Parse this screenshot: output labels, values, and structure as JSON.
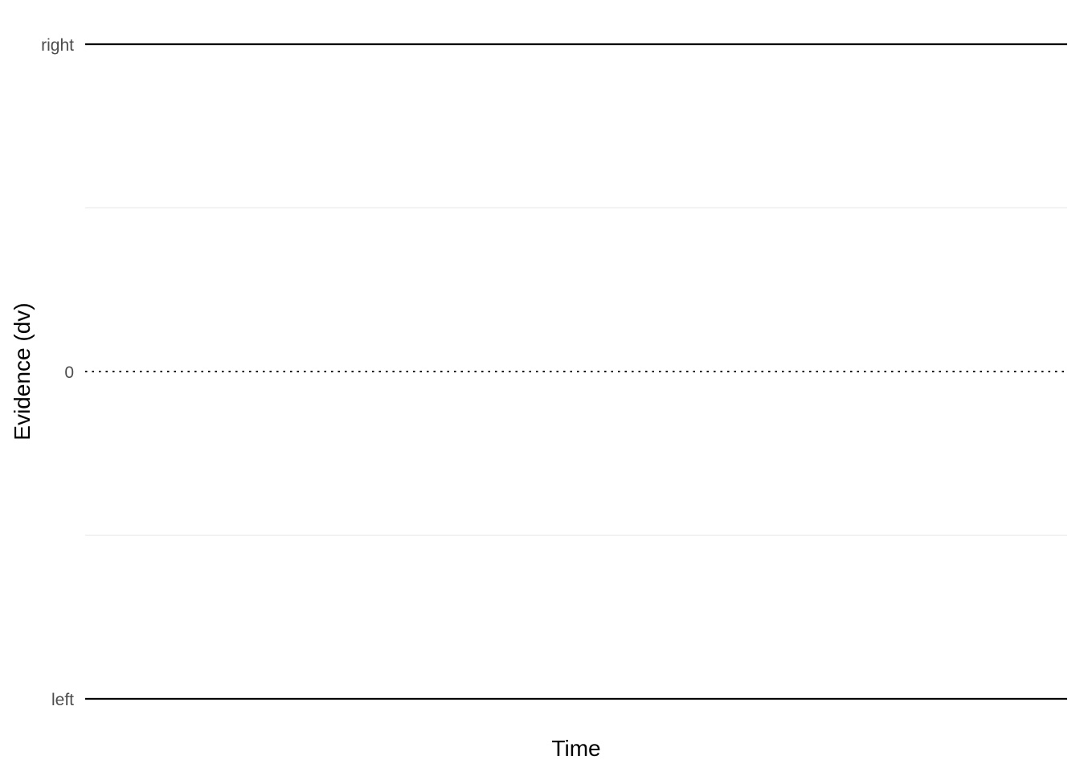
{
  "chart_data": {
    "type": "line",
    "title": "",
    "xlabel": "Time",
    "ylabel": "Evidence (dv)",
    "ylim": [
      -1,
      1
    ],
    "y_ticks": [
      {
        "value": 1,
        "label": "right"
      },
      {
        "value": 0,
        "label": "0"
      },
      {
        "value": -1,
        "label": "left"
      }
    ],
    "y_minor_gridlines": [
      0.5,
      -0.5
    ],
    "reference_lines": [
      {
        "name": "upper-boundary",
        "value": 1,
        "style": "solid",
        "color": "#000000"
      },
      {
        "name": "start-point",
        "value": 0,
        "style": "dotted",
        "color": "#000000"
      },
      {
        "name": "lower-boundary",
        "value": -1,
        "style": "solid",
        "color": "#000000"
      }
    ],
    "grid": true,
    "grid_color": "#ebebeb",
    "series": []
  }
}
